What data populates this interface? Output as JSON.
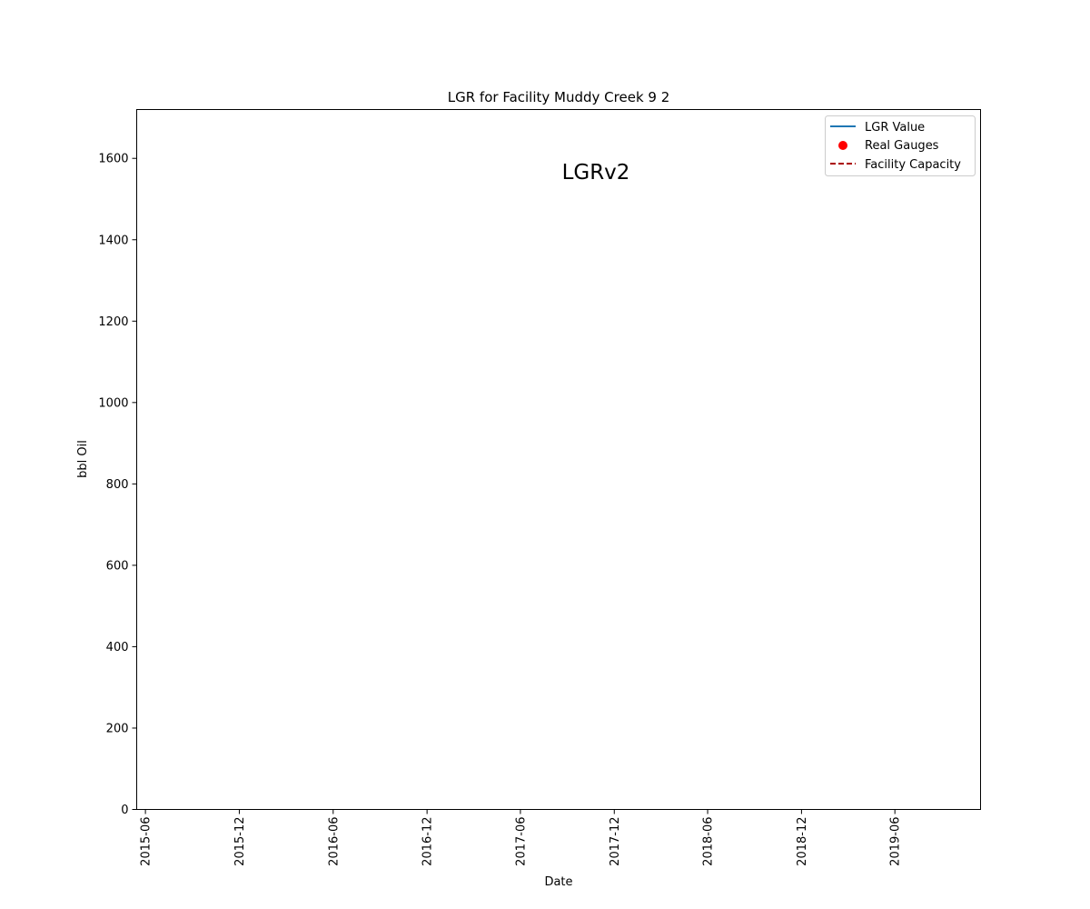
{
  "chart_data": {
    "type": "line",
    "title": "LGR for Facility Muddy Creek 9 2",
    "xlabel": "Date",
    "ylabel": "bbl Oil",
    "annotation": "LGRv2",
    "x_ticks": [
      "2015-06",
      "2015-12",
      "2016-06",
      "2016-12",
      "2017-06",
      "2017-12",
      "2018-06",
      "2018-12",
      "2019-06"
    ],
    "xlim": [
      "2015-05-15",
      "2019-11-15"
    ],
    "y_ticks": [
      0,
      200,
      400,
      600,
      800,
      1000,
      1200,
      1400,
      1600
    ],
    "ylim": [
      0,
      1720
    ],
    "grid": false,
    "legend_position": "top-right",
    "series": [
      {
        "name": "LGR Value",
        "style": "line",
        "color": "#1f77b4",
        "values": []
      },
      {
        "name": "Real Gauges",
        "style": "scatter",
        "color": "#ff0000",
        "values": []
      },
      {
        "name": "Facility Capacity",
        "style": "dashed",
        "color": "#aa0000",
        "values": []
      }
    ]
  }
}
